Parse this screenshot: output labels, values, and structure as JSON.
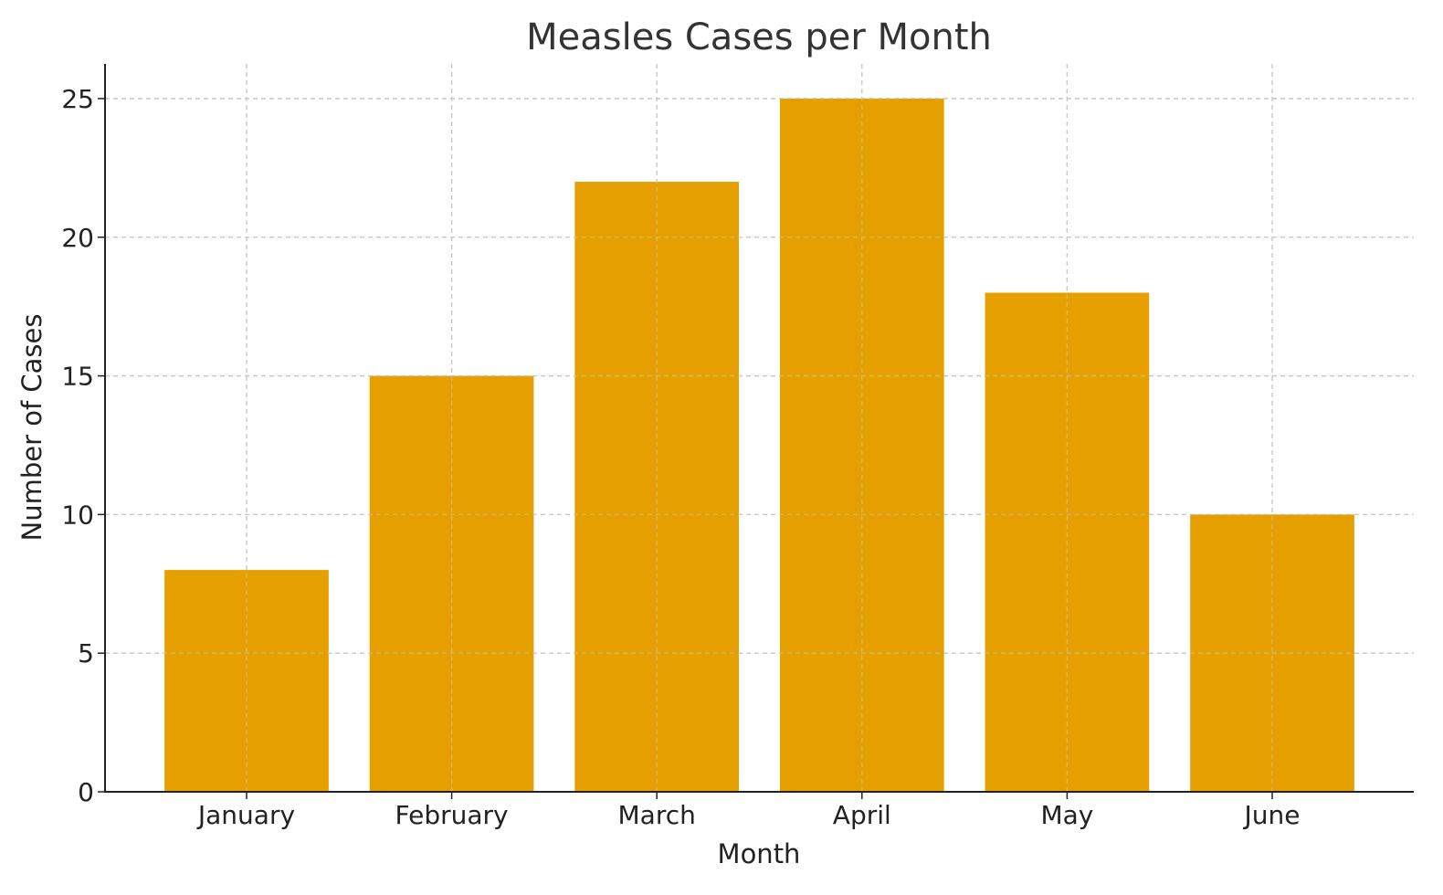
{
  "chart_data": {
    "type": "bar",
    "title": "Measles Cases per Month",
    "xlabel": "Month",
    "ylabel": "Number of Cases",
    "categories": [
      "January",
      "February",
      "March",
      "April",
      "May",
      "June"
    ],
    "values": [
      8,
      15,
      22,
      25,
      18,
      10
    ],
    "ylim": [
      0,
      26.25
    ],
    "yticks": [
      0,
      5,
      10,
      15,
      20,
      25
    ],
    "grid": true,
    "bar_color": "#E5A000"
  }
}
